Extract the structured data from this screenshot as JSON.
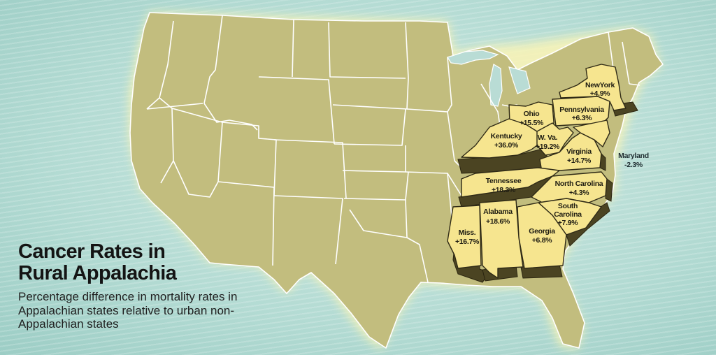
{
  "title": "Cancer Rates in Rural Appalachia",
  "subtitle": "Percentage difference in mortality rates in Appalachian states relative to urban non-Appalachian states",
  "colors": {
    "ocean": "#b8ddd6",
    "land": "#c2bd7e",
    "highlight": "#f6e58f",
    "extrusion": "#4b4422"
  },
  "states": [
    {
      "id": "new-york",
      "name": "NewYork",
      "value": "+4.9%"
    },
    {
      "id": "pennsylvania",
      "name": "Pennsylvania",
      "value": "+6.3%"
    },
    {
      "id": "ohio",
      "name": "Ohio",
      "value": "+15.5%"
    },
    {
      "id": "kentucky",
      "name": "Kentucky",
      "value": "+36.0%"
    },
    {
      "id": "west-virginia",
      "name": "W. Va.",
      "value": "+19.2%"
    },
    {
      "id": "virginia",
      "name": "Virginia",
      "value": "+14.7%"
    },
    {
      "id": "maryland",
      "name": "Maryland",
      "value": "-2.3%"
    },
    {
      "id": "tennessee",
      "name": "Tennessee",
      "value": "+18.3%"
    },
    {
      "id": "north-carolina",
      "name": "North Carolina",
      "value": "+4.3%"
    },
    {
      "id": "south-carolina",
      "name": "South Carolina",
      "value": "+7.9%"
    },
    {
      "id": "georgia",
      "name": "Georgia",
      "value": "+6.8%"
    },
    {
      "id": "alabama",
      "name": "Alabama",
      "value": "+18.6%"
    },
    {
      "id": "mississippi",
      "name": "Miss.",
      "value": "+16.7%"
    }
  ]
}
